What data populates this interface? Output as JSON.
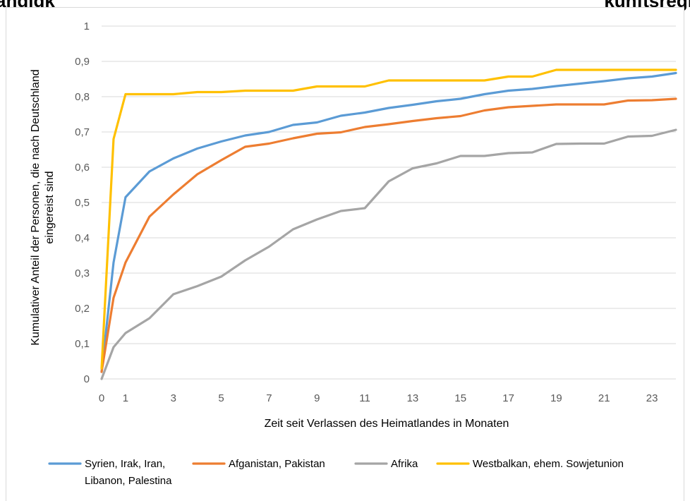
{
  "title_fragments": {
    "left": "ängigk",
    "right": "kunftsregi"
  },
  "chart_data": {
    "type": "line",
    "title": "",
    "xlabel": "Zeit seit Verlassen des Heimatlandes in Monaten",
    "ylabel_lines": [
      "Kumulativer Anteil der Personen, die nach Deutschland",
      "eingereist sind"
    ],
    "ylim": [
      0,
      1
    ],
    "y_ticks": [
      "0",
      "0,1",
      "0,2",
      "0,3",
      "0,4",
      "0,5",
      "0,6",
      "0,7",
      "0,8",
      "0,9",
      "1"
    ],
    "xlim": [
      0,
      24
    ],
    "x_ticks": [
      "0",
      "1",
      "3",
      "5",
      "7",
      "9",
      "11",
      "13",
      "15",
      "17",
      "19",
      "21",
      "23"
    ],
    "grid": "horizontal",
    "legend_placement": "bottom",
    "x": [
      0,
      0.5,
      1,
      2,
      3,
      4,
      5,
      6,
      7,
      8,
      9,
      10,
      11,
      12,
      13,
      14,
      15,
      16,
      17,
      18,
      19,
      20,
      21,
      22,
      23,
      24
    ],
    "series": [
      {
        "name": "Syrien, Irak, Iran, Libanon, Palestina",
        "name_lines": [
          "Syrien, Irak, Iran,",
          "Libanon, Palestina"
        ],
        "color": "#5B9BD5",
        "values": [
          0.02,
          0.33,
          0.515,
          0.588,
          0.625,
          0.653,
          0.673,
          0.69,
          0.7,
          0.72,
          0.727,
          0.746,
          0.755,
          0.768,
          0.777,
          0.787,
          0.794,
          0.807,
          0.817,
          0.822,
          0.83,
          0.837,
          0.844,
          0.852,
          0.857,
          0.867
        ]
      },
      {
        "name": "Afganistan, Pakistan",
        "name_lines": [
          "Afganistan, Pakistan"
        ],
        "color": "#ED7D31",
        "values": [
          0.02,
          0.23,
          0.33,
          0.46,
          0.523,
          0.58,
          0.62,
          0.658,
          0.667,
          0.682,
          0.695,
          0.699,
          0.714,
          0.722,
          0.731,
          0.739,
          0.745,
          0.761,
          0.77,
          0.774,
          0.778,
          0.778,
          0.778,
          0.789,
          0.79,
          0.794
        ]
      },
      {
        "name": "Afrika",
        "name_lines": [
          "Afrika"
        ],
        "color": "#A5A5A5",
        "values": [
          0.0,
          0.09,
          0.13,
          0.172,
          0.24,
          0.263,
          0.29,
          0.336,
          0.375,
          0.424,
          0.452,
          0.476,
          0.484,
          0.56,
          0.597,
          0.611,
          0.632,
          0.632,
          0.64,
          0.642,
          0.666,
          0.667,
          0.667,
          0.687,
          0.689,
          0.706
        ]
      },
      {
        "name": "Westbalkan, ehem. Sowjetunion",
        "name_lines": [
          "Westbalkan, ehem. Sowjetunion"
        ],
        "color": "#FFC000",
        "values": [
          0.03,
          0.68,
          0.807,
          0.807,
          0.807,
          0.813,
          0.813,
          0.817,
          0.817,
          0.817,
          0.829,
          0.829,
          0.829,
          0.846,
          0.846,
          0.846,
          0.846,
          0.846,
          0.857,
          0.857,
          0.876,
          0.876,
          0.876,
          0.876,
          0.876,
          0.876
        ]
      }
    ]
  },
  "colors": {
    "gridline": "#d9d9d9",
    "frame_border": "#d9d9d9",
    "tick_text": "#595959"
  }
}
